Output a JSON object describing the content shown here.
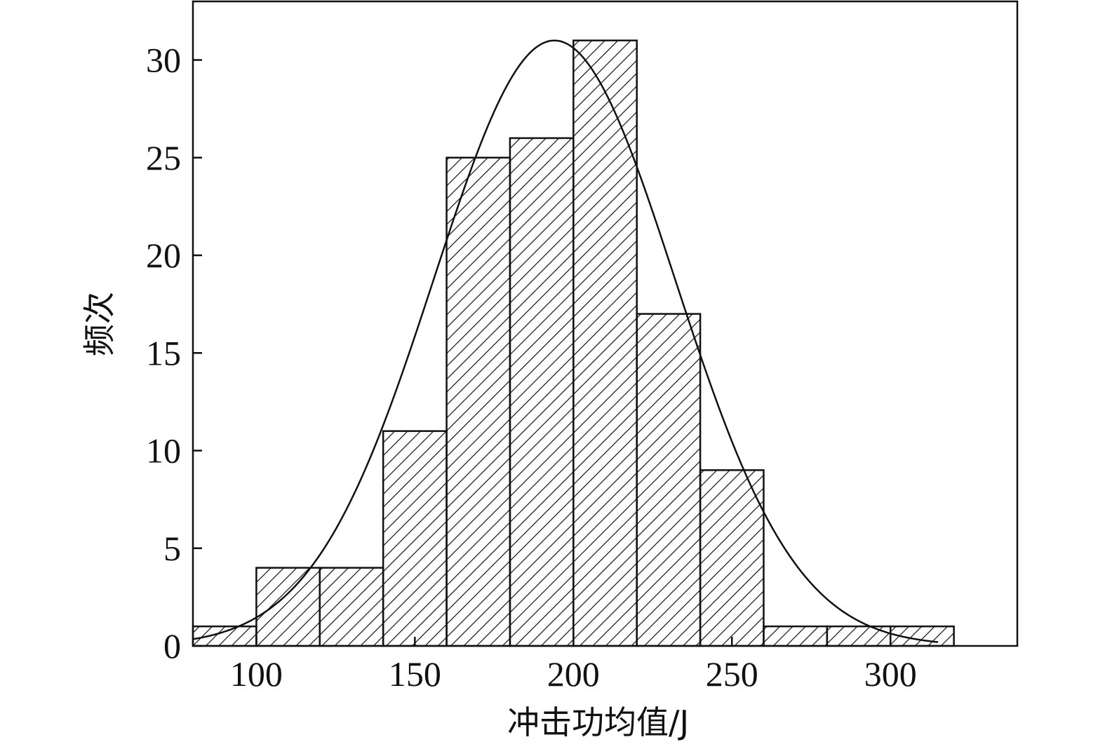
{
  "chart_data": {
    "type": "bar",
    "subtype": "histogram-with-normal-curve",
    "xlabel": "冲击功均值/J",
    "ylabel": "频次",
    "xlim": [
      80,
      340
    ],
    "ylim": [
      0,
      33
    ],
    "x_ticks": [
      100,
      150,
      200,
      250,
      300
    ],
    "y_ticks": [
      0,
      5,
      10,
      15,
      20,
      25,
      30
    ],
    "bin_edges": [
      80,
      100,
      120,
      140,
      160,
      180,
      200,
      220,
      240,
      260,
      280,
      300,
      320
    ],
    "values": [
      1,
      4,
      4,
      11,
      25,
      26,
      31,
      17,
      9,
      1,
      1,
      1
    ],
    "fit_curve": {
      "type": "normal",
      "mean": 194,
      "sd": 38,
      "peak": 31,
      "x_range": [
        80,
        315
      ]
    },
    "grid": false,
    "bar_fill": "diagonal-hatch",
    "colors": {
      "stroke": "#111111",
      "background": "#ffffff"
    }
  }
}
